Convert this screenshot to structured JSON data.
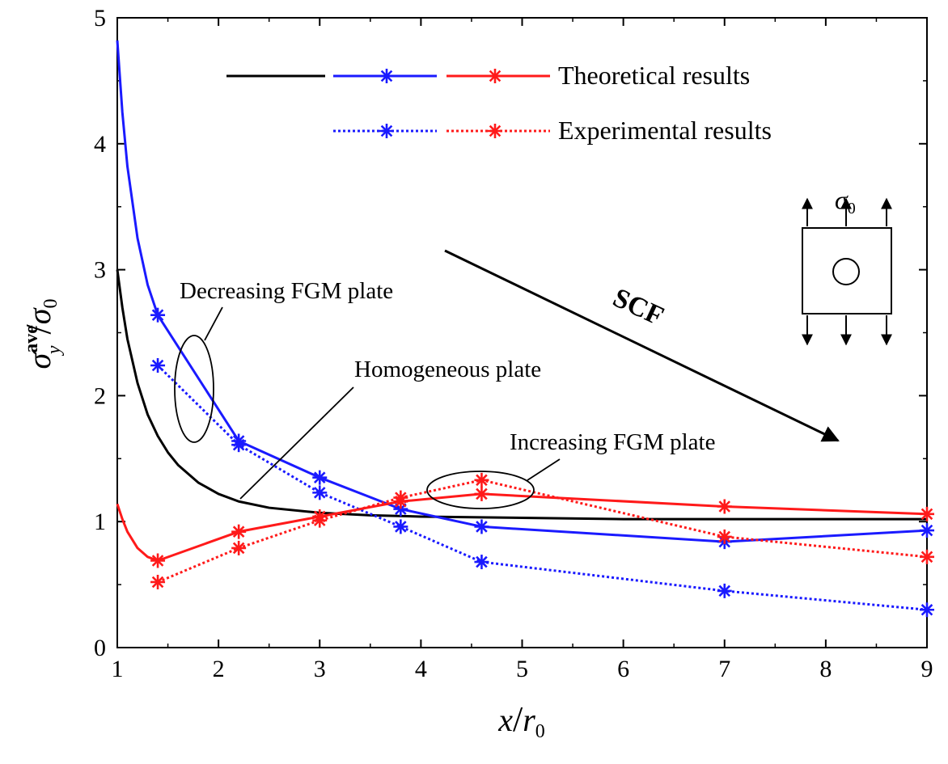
{
  "chart_data": {
    "type": "line",
    "xlabel_main": "x",
    "xlabel_den": "r",
    "xlabel_den_sub": "0",
    "ylabel_main": "σ",
    "ylabel_sup": "ave",
    "ylabel_sub": "y",
    "ylabel_den": "σ",
    "ylabel_den_sub": "0",
    "xlim": [
      1,
      9
    ],
    "ylim": [
      0,
      5
    ],
    "xticks": [
      "1",
      "2",
      "3",
      "4",
      "5",
      "6",
      "7",
      "8",
      "9"
    ],
    "yticks": [
      "0",
      "1",
      "2",
      "3",
      "4",
      "5"
    ],
    "grid": false,
    "legend": {
      "placement": "top-center",
      "entries": [
        "Theoretical results",
        "Experimental results"
      ]
    },
    "colors": {
      "homogeneous": "#000000",
      "decreasing": "#1a1aff",
      "increasing": "#ff1a1a"
    },
    "series": [
      {
        "group": "homogeneous",
        "style": "solid",
        "marker": "none",
        "x": [
          1.0,
          1.05,
          1.1,
          1.2,
          1.3,
          1.4,
          1.5,
          1.6,
          1.8,
          2.0,
          2.2,
          2.5,
          3.0,
          3.5,
          4.0,
          5.0,
          6.0,
          7.0,
          8.0,
          9.0
        ],
        "y": [
          3.0,
          2.7,
          2.45,
          2.1,
          1.85,
          1.68,
          1.55,
          1.45,
          1.31,
          1.22,
          1.16,
          1.11,
          1.07,
          1.05,
          1.04,
          1.03,
          1.02,
          1.02,
          1.02,
          1.02
        ]
      },
      {
        "group": "decreasing",
        "style": "solid",
        "marker": "none",
        "x": [
          1.0,
          1.05,
          1.1,
          1.2,
          1.3,
          1.4
        ],
        "y": [
          4.82,
          4.25,
          3.82,
          3.25,
          2.88,
          2.64
        ]
      },
      {
        "group": "decreasing",
        "style": "solid",
        "marker": "asterisk",
        "x": [
          1.4,
          2.2,
          3.0,
          3.8,
          4.6,
          7.0,
          9.0
        ],
        "y": [
          2.64,
          1.64,
          1.35,
          1.1,
          0.96,
          0.84,
          0.93
        ]
      },
      {
        "group": "decreasing",
        "style": "dotted",
        "marker": "asterisk",
        "x": [
          1.4,
          2.2,
          3.0,
          3.8,
          4.6,
          7.0,
          9.0
        ],
        "y": [
          2.24,
          1.61,
          1.23,
          0.96,
          0.68,
          0.45,
          0.3
        ]
      },
      {
        "group": "increasing",
        "style": "solid",
        "marker": "none",
        "x": [
          1.0,
          1.05,
          1.1,
          1.2,
          1.3,
          1.4
        ],
        "y": [
          1.14,
          1.02,
          0.92,
          0.79,
          0.72,
          0.69
        ]
      },
      {
        "group": "increasing",
        "style": "solid",
        "marker": "asterisk",
        "x": [
          1.4,
          2.2,
          3.0,
          3.8,
          4.6,
          7.0,
          9.0
        ],
        "y": [
          0.69,
          0.92,
          1.04,
          1.16,
          1.22,
          1.12,
          1.06
        ]
      },
      {
        "group": "increasing",
        "style": "dotted",
        "marker": "asterisk",
        "x": [
          1.4,
          2.2,
          3.0,
          3.8,
          4.6,
          7.0,
          9.0
        ],
        "y": [
          0.52,
          0.79,
          1.01,
          1.19,
          1.33,
          0.88,
          0.72
        ]
      }
    ],
    "annotations": {
      "decreasing": "Decreasing FGM plate",
      "homogeneous": "Homogeneous plate",
      "increasing": "Increasing FGM plate",
      "scf": "SCF",
      "inset_sigma": "σ",
      "inset_sigma_sub": "0"
    }
  }
}
